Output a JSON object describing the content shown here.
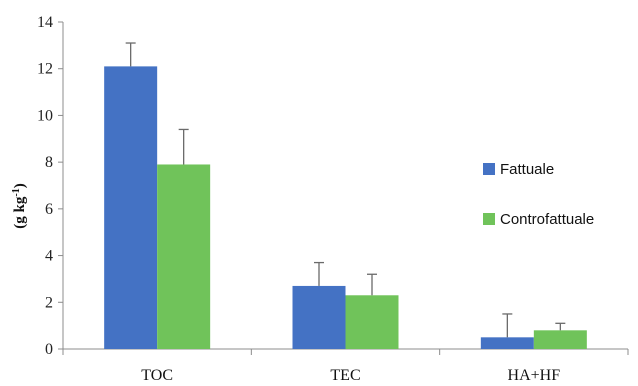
{
  "chart_data": {
    "type": "bar",
    "categories": [
      "TOC",
      "TEC",
      "HA+HF"
    ],
    "series": [
      {
        "name": "Fattuale",
        "values": [
          12.1,
          2.7,
          0.5
        ],
        "error": [
          1.0,
          1.0,
          1.0
        ],
        "color": "#4472C4"
      },
      {
        "name": "Controfattuale",
        "values": [
          7.9,
          2.3,
          0.8
        ],
        "error": [
          1.5,
          0.9,
          0.3
        ],
        "color": "#70C35A"
      }
    ],
    "title": "",
    "xlabel": "",
    "ylabel": "(g kg-1)",
    "ylim": [
      0,
      14
    ],
    "yticks": [
      0,
      2,
      4,
      6,
      8,
      10,
      12,
      14
    ],
    "grid": false,
    "legend_position": "right"
  }
}
